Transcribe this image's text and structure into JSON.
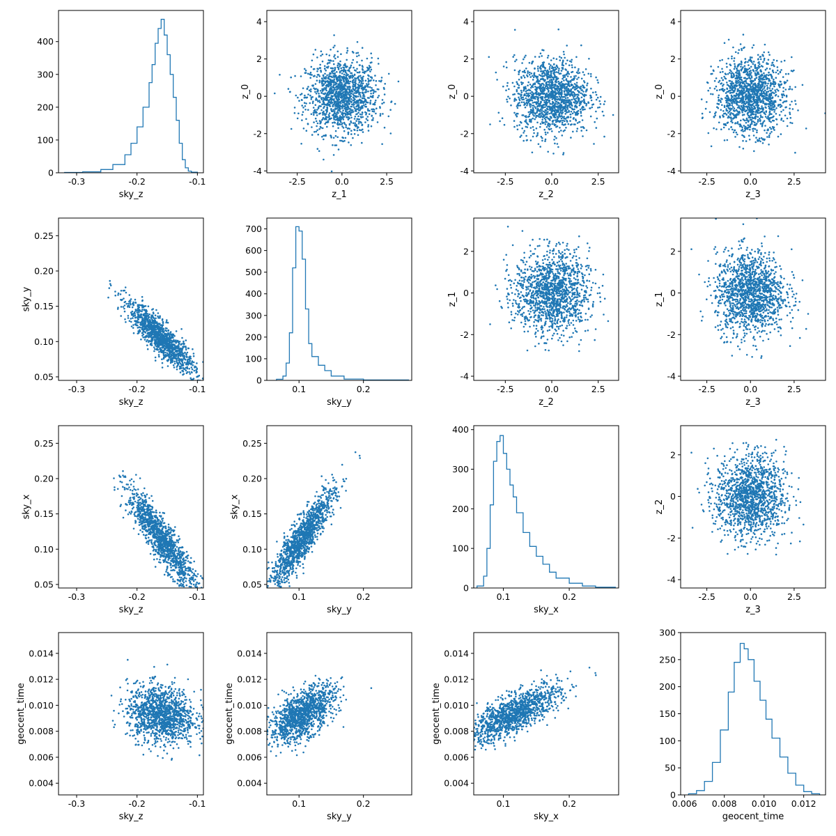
{
  "figure_title": "",
  "accent_color": "#1f77b4",
  "chart_data": [
    {
      "type": "histogram",
      "xlabel": "sky_z",
      "ylabel": "",
      "xlim": [
        -0.33,
        -0.09
      ],
      "ylim": [
        0,
        495
      ],
      "xticks": [
        -0.3,
        -0.2,
        -0.1
      ],
      "xtick_labels": [
        "-0.3",
        "-0.2",
        "-0.1"
      ],
      "yticks": [
        0,
        100,
        200,
        300,
        400
      ],
      "ytick_labels": [
        "0",
        "100",
        "200",
        "300",
        "400"
      ],
      "bins": [
        -0.32,
        -0.29,
        -0.26,
        -0.24,
        -0.22,
        -0.21,
        -0.2,
        -0.19,
        -0.18,
        -0.175,
        -0.17,
        -0.165,
        -0.16,
        -0.155,
        -0.15,
        -0.145,
        -0.14,
        -0.135,
        -0.13,
        -0.125,
        -0.12,
        -0.115,
        -0.11,
        -0.1
      ],
      "counts": [
        1,
        3,
        10,
        25,
        55,
        90,
        140,
        200,
        275,
        330,
        395,
        440,
        468,
        420,
        360,
        300,
        230,
        160,
        90,
        40,
        15,
        5,
        2
      ]
    },
    {
      "type": "scatter",
      "xlabel": "z_1",
      "ylabel": "z_0",
      "xlim": [
        -4.2,
        3.9
      ],
      "ylim": [
        -4.1,
        4.6
      ],
      "xticks": [
        -2.5,
        0,
        2.5
      ],
      "xtick_labels": [
        "-2.5",
        "0.0",
        "2.5"
      ],
      "yticks": [
        -4,
        -2,
        0,
        2,
        4
      ],
      "ytick_labels": [
        "-4",
        "-2",
        "0",
        "2",
        "4"
      ],
      "x_center": 0,
      "y_center": 0,
      "x_spread": 1.0,
      "y_spread": 1.0,
      "corr": 0,
      "n_points": 1400
    },
    {
      "type": "scatter",
      "xlabel": "z_2",
      "ylabel": "z_0",
      "xlim": [
        -4.2,
        3.6
      ],
      "ylim": [
        -4.1,
        4.6
      ],
      "xticks": [
        -2.5,
        0,
        2.5
      ],
      "xtick_labels": [
        "-2.5",
        "0.0",
        "2.5"
      ],
      "yticks": [
        -4,
        -2,
        0,
        2,
        4
      ],
      "ytick_labels": [
        "-4",
        "-2",
        "0",
        "2",
        "4"
      ],
      "x_center": 0,
      "y_center": 0,
      "x_spread": 1.0,
      "y_spread": 1.0,
      "corr": 0,
      "n_points": 1400
    },
    {
      "type": "scatter",
      "xlabel": "z_3",
      "ylabel": "z_0",
      "xlim": [
        -4.0,
        4.3
      ],
      "ylim": [
        -4.1,
        4.6
      ],
      "xticks": [
        -2.5,
        0,
        2.5
      ],
      "xtick_labels": [
        "-2.5",
        "0.0",
        "2.5"
      ],
      "yticks": [
        -4,
        -2,
        0,
        2,
        4
      ],
      "ytick_labels": [
        "-4",
        "-2",
        "0",
        "2",
        "4"
      ],
      "x_center": 0,
      "y_center": 0,
      "x_spread": 1.0,
      "y_spread": 1.0,
      "corr": 0,
      "n_points": 1400
    },
    {
      "type": "scatter",
      "xlabel": "sky_z",
      "ylabel": "sky_y",
      "xlim": [
        -0.33,
        -0.09
      ],
      "ylim": [
        0.045,
        0.275
      ],
      "xticks": [
        -0.3,
        -0.2,
        -0.1
      ],
      "xtick_labels": [
        "-0.3",
        "-0.2",
        "-0.1"
      ],
      "yticks": [
        0.05,
        0.1,
        0.15,
        0.2,
        0.25
      ],
      "ytick_labels": [
        "0.05",
        "0.10",
        "0.15",
        "0.20",
        "0.25"
      ],
      "x_center": -0.16,
      "y_center": 0.105,
      "x_spread": 0.028,
      "y_spread": 0.025,
      "corr": -0.88,
      "n_points": 1300
    },
    {
      "type": "histogram",
      "xlabel": "sky_y",
      "ylabel": "",
      "xlim": [
        0.05,
        0.275
      ],
      "ylim": [
        0,
        750
      ],
      "xticks": [
        0.1,
        0.2
      ],
      "xtick_labels": [
        "0.1",
        "0.2"
      ],
      "yticks": [
        0,
        100,
        200,
        300,
        400,
        500,
        600,
        700
      ],
      "ytick_labels": [
        "0",
        "100",
        "200",
        "300",
        "400",
        "500",
        "600",
        "700"
      ],
      "bins": [
        0.065,
        0.075,
        0.08,
        0.085,
        0.09,
        0.095,
        0.1,
        0.105,
        0.11,
        0.115,
        0.12,
        0.13,
        0.14,
        0.15,
        0.17,
        0.2,
        0.27
      ],
      "counts": [
        5,
        20,
        80,
        220,
        520,
        710,
        690,
        560,
        330,
        170,
        110,
        70,
        45,
        20,
        6,
        2
      ]
    },
    {
      "type": "scatter",
      "xlabel": "z_2",
      "ylabel": "z_1",
      "xlim": [
        -4.2,
        3.6
      ],
      "ylim": [
        -4.2,
        3.6
      ],
      "xticks": [
        -2.5,
        0,
        2.5
      ],
      "xtick_labels": [
        "-2.5",
        "0.0",
        "2.5"
      ],
      "yticks": [
        -4,
        -2,
        0,
        2
      ],
      "ytick_labels": [
        "-4",
        "-2",
        "0",
        "2"
      ],
      "x_center": 0,
      "y_center": 0,
      "x_spread": 1.0,
      "y_spread": 1.0,
      "corr": 0,
      "n_points": 1400
    },
    {
      "type": "scatter",
      "xlabel": "z_3",
      "ylabel": "z_1",
      "xlim": [
        -4.0,
        4.3
      ],
      "ylim": [
        -4.2,
        3.6
      ],
      "xticks": [
        -2.5,
        0,
        2.5
      ],
      "xtick_labels": [
        "-2.5",
        "0.0",
        "2.5"
      ],
      "yticks": [
        -4,
        -2,
        0,
        2
      ],
      "ytick_labels": [
        "-4",
        "-2",
        "0",
        "2"
      ],
      "x_center": 0,
      "y_center": 0,
      "x_spread": 1.0,
      "y_spread": 1.0,
      "corr": 0,
      "n_points": 1400
    },
    {
      "type": "scatter",
      "xlabel": "sky_z",
      "ylabel": "sky_x",
      "xlim": [
        -0.33,
        -0.09
      ],
      "ylim": [
        0.045,
        0.275
      ],
      "xticks": [
        -0.3,
        -0.2,
        -0.1
      ],
      "xtick_labels": [
        "-0.3",
        "-0.2",
        "-0.1"
      ],
      "yticks": [
        0.05,
        0.1,
        0.15,
        0.2,
        0.25
      ],
      "ytick_labels": [
        "0.05",
        "0.10",
        "0.15",
        "0.20",
        "0.25"
      ],
      "x_center": -0.16,
      "y_center": 0.115,
      "x_spread": 0.028,
      "y_spread": 0.035,
      "corr": -0.9,
      "n_points": 1300
    },
    {
      "type": "scatter",
      "xlabel": "sky_y",
      "ylabel": "sky_x",
      "xlim": [
        0.05,
        0.275
      ],
      "ylim": [
        0.045,
        0.275
      ],
      "xticks": [
        0.1,
        0.2
      ],
      "xtick_labels": [
        "0.1",
        "0.2"
      ],
      "yticks": [
        0.05,
        0.1,
        0.15,
        0.2,
        0.25
      ],
      "ytick_labels": [
        "0.05",
        "0.10",
        "0.15",
        "0.20",
        "0.25"
      ],
      "x_center": 0.105,
      "y_center": 0.115,
      "x_spread": 0.025,
      "y_spread": 0.035,
      "corr": 0.9,
      "n_points": 1300
    },
    {
      "type": "histogram",
      "xlabel": "sky_x",
      "ylabel": "",
      "xlim": [
        0.055,
        0.275
      ],
      "ylim": [
        0,
        410
      ],
      "xticks": [
        0.1,
        0.2
      ],
      "xtick_labels": [
        "0.1",
        "0.2"
      ],
      "yticks": [
        0,
        100,
        200,
        300,
        400
      ],
      "ytick_labels": [
        "0",
        "100",
        "200",
        "300",
        "400"
      ],
      "bins": [
        0.06,
        0.07,
        0.075,
        0.08,
        0.085,
        0.09,
        0.095,
        0.1,
        0.105,
        0.11,
        0.115,
        0.12,
        0.13,
        0.14,
        0.15,
        0.16,
        0.17,
        0.18,
        0.2,
        0.22,
        0.24,
        0.27
      ],
      "counts": [
        5,
        30,
        100,
        210,
        320,
        370,
        385,
        340,
        300,
        260,
        230,
        190,
        140,
        105,
        80,
        60,
        40,
        25,
        12,
        5,
        2
      ]
    },
    {
      "type": "scatter",
      "xlabel": "z_3",
      "ylabel": "z_2",
      "xlim": [
        -4.0,
        4.3
      ],
      "ylim": [
        -4.4,
        3.4
      ],
      "xticks": [
        -2.5,
        0,
        2.5
      ],
      "xtick_labels": [
        "-2.5",
        "0.0",
        "2.5"
      ],
      "yticks": [
        -4,
        -2,
        0,
        2
      ],
      "ytick_labels": [
        "-4",
        "-2",
        "0",
        "2"
      ],
      "x_center": 0,
      "y_center": 0,
      "x_spread": 1.0,
      "y_spread": 1.0,
      "corr": 0,
      "n_points": 1400
    },
    {
      "type": "scatter",
      "xlabel": "sky_z",
      "ylabel": "geocent_time",
      "xlim": [
        -0.33,
        -0.09
      ],
      "ylim": [
        0.0031,
        0.0156
      ],
      "xticks": [
        -0.3,
        -0.2,
        -0.1
      ],
      "xtick_labels": [
        "-0.3",
        "-0.2",
        "-0.1"
      ],
      "yticks": [
        0.004,
        0.006,
        0.008,
        0.01,
        0.012,
        0.014
      ],
      "ytick_labels": [
        "0.004",
        "0.006",
        "0.008",
        "0.010",
        "0.012",
        "0.014"
      ],
      "x_center": -0.16,
      "y_center": 0.0093,
      "x_spread": 0.028,
      "y_spread": 0.0011,
      "corr": -0.15,
      "n_points": 1300
    },
    {
      "type": "scatter",
      "xlabel": "sky_y",
      "ylabel": "geocent_time",
      "xlim": [
        0.05,
        0.275
      ],
      "ylim": [
        0.0031,
        0.0156
      ],
      "xticks": [
        0.1,
        0.2
      ],
      "xtick_labels": [
        "0.1",
        "0.2"
      ],
      "yticks": [
        0.004,
        0.006,
        0.008,
        0.01,
        0.012,
        0.014
      ],
      "ytick_labels": [
        "0.004",
        "0.006",
        "0.008",
        "0.010",
        "0.012",
        "0.014"
      ],
      "x_center": 0.105,
      "y_center": 0.0093,
      "x_spread": 0.025,
      "y_spread": 0.0011,
      "corr": 0.6,
      "n_points": 1300
    },
    {
      "type": "scatter",
      "xlabel": "sky_x",
      "ylabel": "geocent_time",
      "xlim": [
        0.055,
        0.275
      ],
      "ylim": [
        0.0031,
        0.0156
      ],
      "xticks": [
        0.1,
        0.2
      ],
      "xtick_labels": [
        "0.1",
        "0.2"
      ],
      "yticks": [
        0.004,
        0.006,
        0.008,
        0.01,
        0.012,
        0.014
      ],
      "ytick_labels": [
        "0.004",
        "0.006",
        "0.008",
        "0.010",
        "0.012",
        "0.014"
      ],
      "x_center": 0.115,
      "y_center": 0.0093,
      "x_spread": 0.035,
      "y_spread": 0.0011,
      "corr": 0.75,
      "n_points": 1300
    },
    {
      "type": "histogram",
      "xlabel": "geocent_time",
      "ylabel": "",
      "xlim": [
        0.0058,
        0.0131
      ],
      "ylim": [
        0,
        300
      ],
      "xticks": [
        0.006,
        0.008,
        0.01,
        0.012
      ],
      "xtick_labels": [
        "0.006",
        "0.008",
        "0.010",
        "0.012"
      ],
      "yticks": [
        0,
        50,
        100,
        150,
        200,
        250,
        300
      ],
      "ytick_labels": [
        "0",
        "50",
        "100",
        "150",
        "200",
        "250",
        "300"
      ],
      "bins": [
        0.0062,
        0.0066,
        0.007,
        0.0074,
        0.0078,
        0.0082,
        0.0085,
        0.0088,
        0.009,
        0.0092,
        0.0095,
        0.0098,
        0.0101,
        0.0104,
        0.0108,
        0.0112,
        0.0116,
        0.012,
        0.0124,
        0.0128
      ],
      "counts": [
        2,
        8,
        25,
        60,
        120,
        190,
        245,
        280,
        270,
        250,
        210,
        175,
        140,
        105,
        70,
        40,
        18,
        6,
        2
      ]
    }
  ]
}
